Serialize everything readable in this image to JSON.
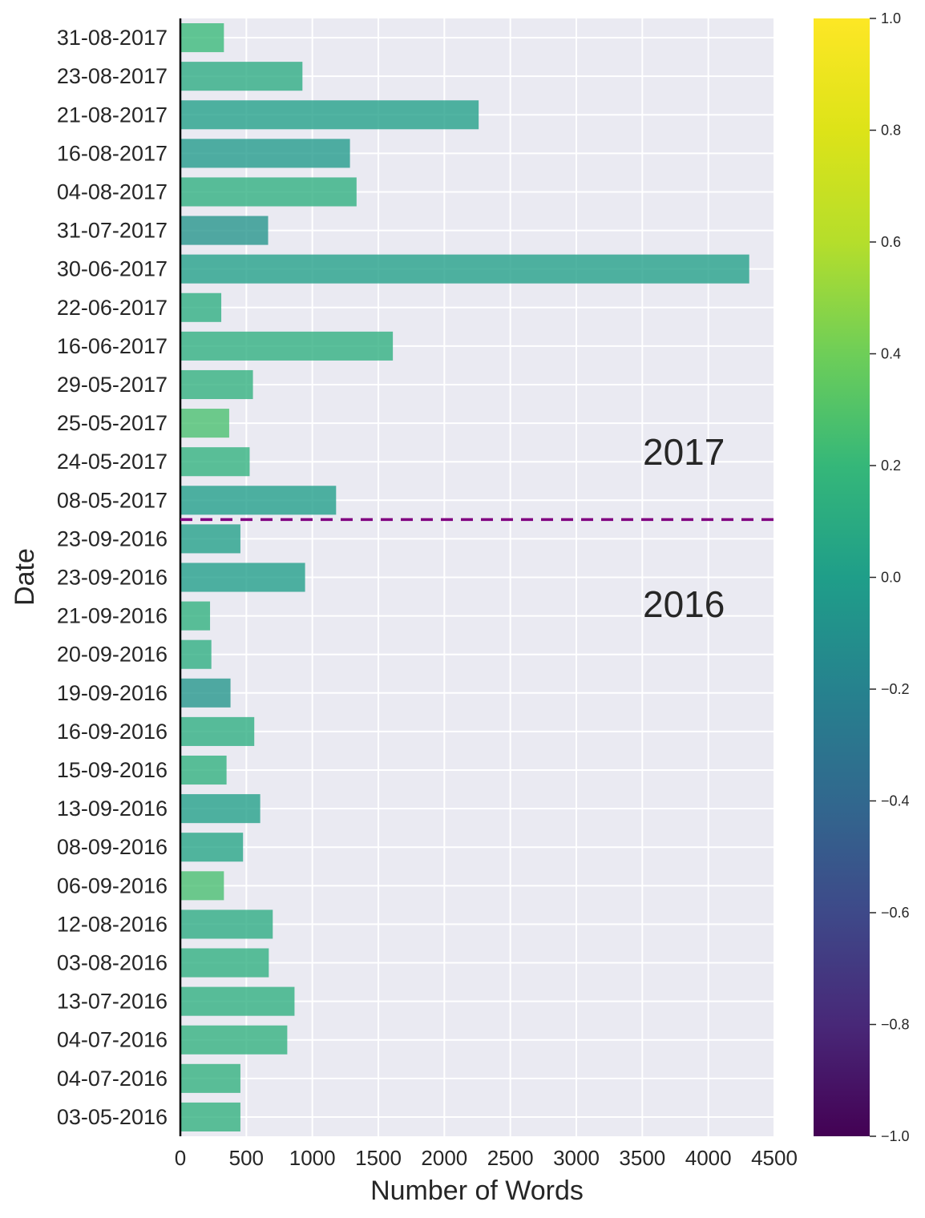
{
  "chart_data": {
    "type": "bar",
    "orientation": "horizontal",
    "xlabel": "Number of Words",
    "ylabel": "Date",
    "xlim": [
      0,
      4500
    ],
    "x_ticks": [
      0,
      500,
      1000,
      1500,
      2000,
      2500,
      3000,
      3500,
      4000,
      4500
    ],
    "grid": true,
    "categories": [
      "31-08-2017",
      "23-08-2017",
      "21-08-2017",
      "16-08-2017",
      "04-08-2017",
      "31-07-2017",
      "30-06-2017",
      "22-06-2017",
      "16-06-2017",
      "29-05-2017",
      "25-05-2017",
      "24-05-2017",
      "08-05-2017",
      "23-09-2016",
      "23-09-2016",
      "21-09-2016",
      "20-09-2016",
      "19-09-2016",
      "16-09-2016",
      "15-09-2016",
      "13-09-2016",
      "08-09-2016",
      "06-09-2016",
      "12-08-2016",
      "03-08-2016",
      "13-07-2016",
      "04-07-2016",
      "04-07-2016",
      "03-05-2016"
    ],
    "values": [
      330,
      925,
      2260,
      1285,
      1335,
      665,
      4310,
      310,
      1610,
      550,
      370,
      525,
      1180,
      455,
      945,
      225,
      235,
      380,
      560,
      350,
      605,
      475,
      330,
      700,
      670,
      865,
      810,
      455,
      455
    ],
    "color_values": [
      0.34,
      0.22,
      0.12,
      0.08,
      0.25,
      0.02,
      0.12,
      0.24,
      0.25,
      0.27,
      0.41,
      0.28,
      0.11,
      0.12,
      0.11,
      0.26,
      0.24,
      0.04,
      0.24,
      0.26,
      0.12,
      0.16,
      0.4,
      0.22,
      0.25,
      0.25,
      0.27,
      0.27,
      0.27
    ],
    "colormap": "viridis",
    "colorbar": {
      "min": -1.0,
      "max": 1.0,
      "tick_labels": [
        "1.0",
        "0.8",
        "0.6",
        "0.4",
        "0.2",
        "0.0",
        "−0.2",
        "−0.4",
        "−0.6",
        "−0.8",
        "−1.0"
      ]
    },
    "divider": {
      "between": [
        "08-05-2017",
        "23-09-2016"
      ],
      "style": "dashed",
      "color": "#800080"
    },
    "annotations": [
      "2017",
      "2016"
    ]
  }
}
